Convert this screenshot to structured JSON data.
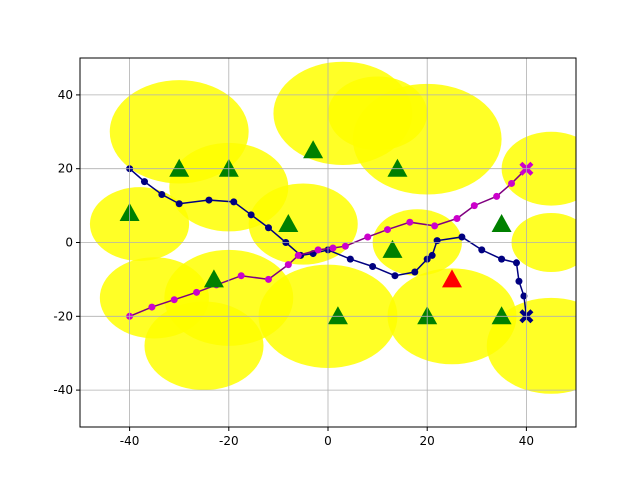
{
  "chart_data": {
    "type": "line",
    "xlim": [
      -50,
      50
    ],
    "ylim": [
      -50,
      50
    ],
    "xticks": [
      -40,
      -20,
      0,
      20,
      40
    ],
    "yticks": [
      -40,
      -20,
      0,
      20,
      40
    ],
    "grid": true,
    "regions": {
      "color": "#ffff00",
      "x": [
        -30,
        -38,
        -20,
        -20,
        -35,
        3,
        -5,
        20,
        45,
        45,
        0,
        25,
        45,
        -25,
        18,
        10
      ],
      "y": [
        30,
        5,
        15,
        -15,
        -15,
        35,
        5,
        28,
        20,
        0,
        -20,
        -20,
        -28,
        -28,
        0,
        35
      ],
      "r": [
        14,
        10,
        12,
        13,
        11,
        14,
        11,
        15,
        10,
        8,
        14,
        13,
        13,
        12,
        9,
        10
      ]
    },
    "series": [
      {
        "color": "#000080",
        "marker": "o",
        "line": true,
        "x": [
          -40,
          -37,
          -33.5,
          -30,
          -24,
          -19,
          -15.5,
          -12,
          -8.5,
          -5.5,
          -3,
          0,
          4.5,
          9,
          13.5,
          17.5,
          20,
          21,
          22,
          27,
          31,
          35,
          38,
          38.5,
          39.5,
          40
        ],
        "y": [
          20,
          16.5,
          13,
          10.5,
          11.5,
          11,
          7.5,
          4,
          0,
          -3.5,
          -3,
          -2,
          -4.5,
          -6.5,
          -9,
          -8,
          -4.5,
          -3.5,
          0.5,
          1.5,
          -2,
          -4.5,
          -5.5,
          -10.5,
          -14.5,
          -20
        ]
      },
      {
        "color": "#800080",
        "marker": "o",
        "line": true,
        "marker_color": "#cc00cc",
        "x": [
          -40,
          -35.5,
          -31,
          -26.5,
          -22.5,
          -17.5,
          -12,
          -8,
          -6,
          -2,
          1,
          3.5,
          8,
          12,
          16.5,
          21.5,
          26,
          29.5,
          34,
          37,
          40
        ],
        "y": [
          -20,
          -17.5,
          -15.5,
          -13.5,
          -11.5,
          -9,
          -10,
          -6,
          -3.5,
          -2,
          -1.5,
          -1,
          1.5,
          3.5,
          5.5,
          4.5,
          6.5,
          10,
          12.5,
          16,
          20
        ]
      },
      {
        "color": "#000080",
        "marker": "X",
        "line": false,
        "x": [
          40
        ],
        "y": [
          -20
        ]
      },
      {
        "color": "#cc00cc",
        "marker": "X",
        "line": false,
        "x": [
          40
        ],
        "y": [
          20
        ]
      },
      {
        "color": "#008000",
        "marker": "^",
        "line": false,
        "x": [
          -40,
          -30,
          -20,
          -3,
          14,
          -8,
          13,
          35,
          -23,
          2,
          20,
          35
        ],
        "y": [
          8,
          20,
          20,
          25,
          20,
          5,
          -2,
          5,
          -10,
          -20,
          -20,
          -20
        ]
      },
      {
        "color": "#ff0000",
        "marker": "^",
        "line": false,
        "x": [
          25
        ],
        "y": [
          -10
        ]
      }
    ]
  }
}
